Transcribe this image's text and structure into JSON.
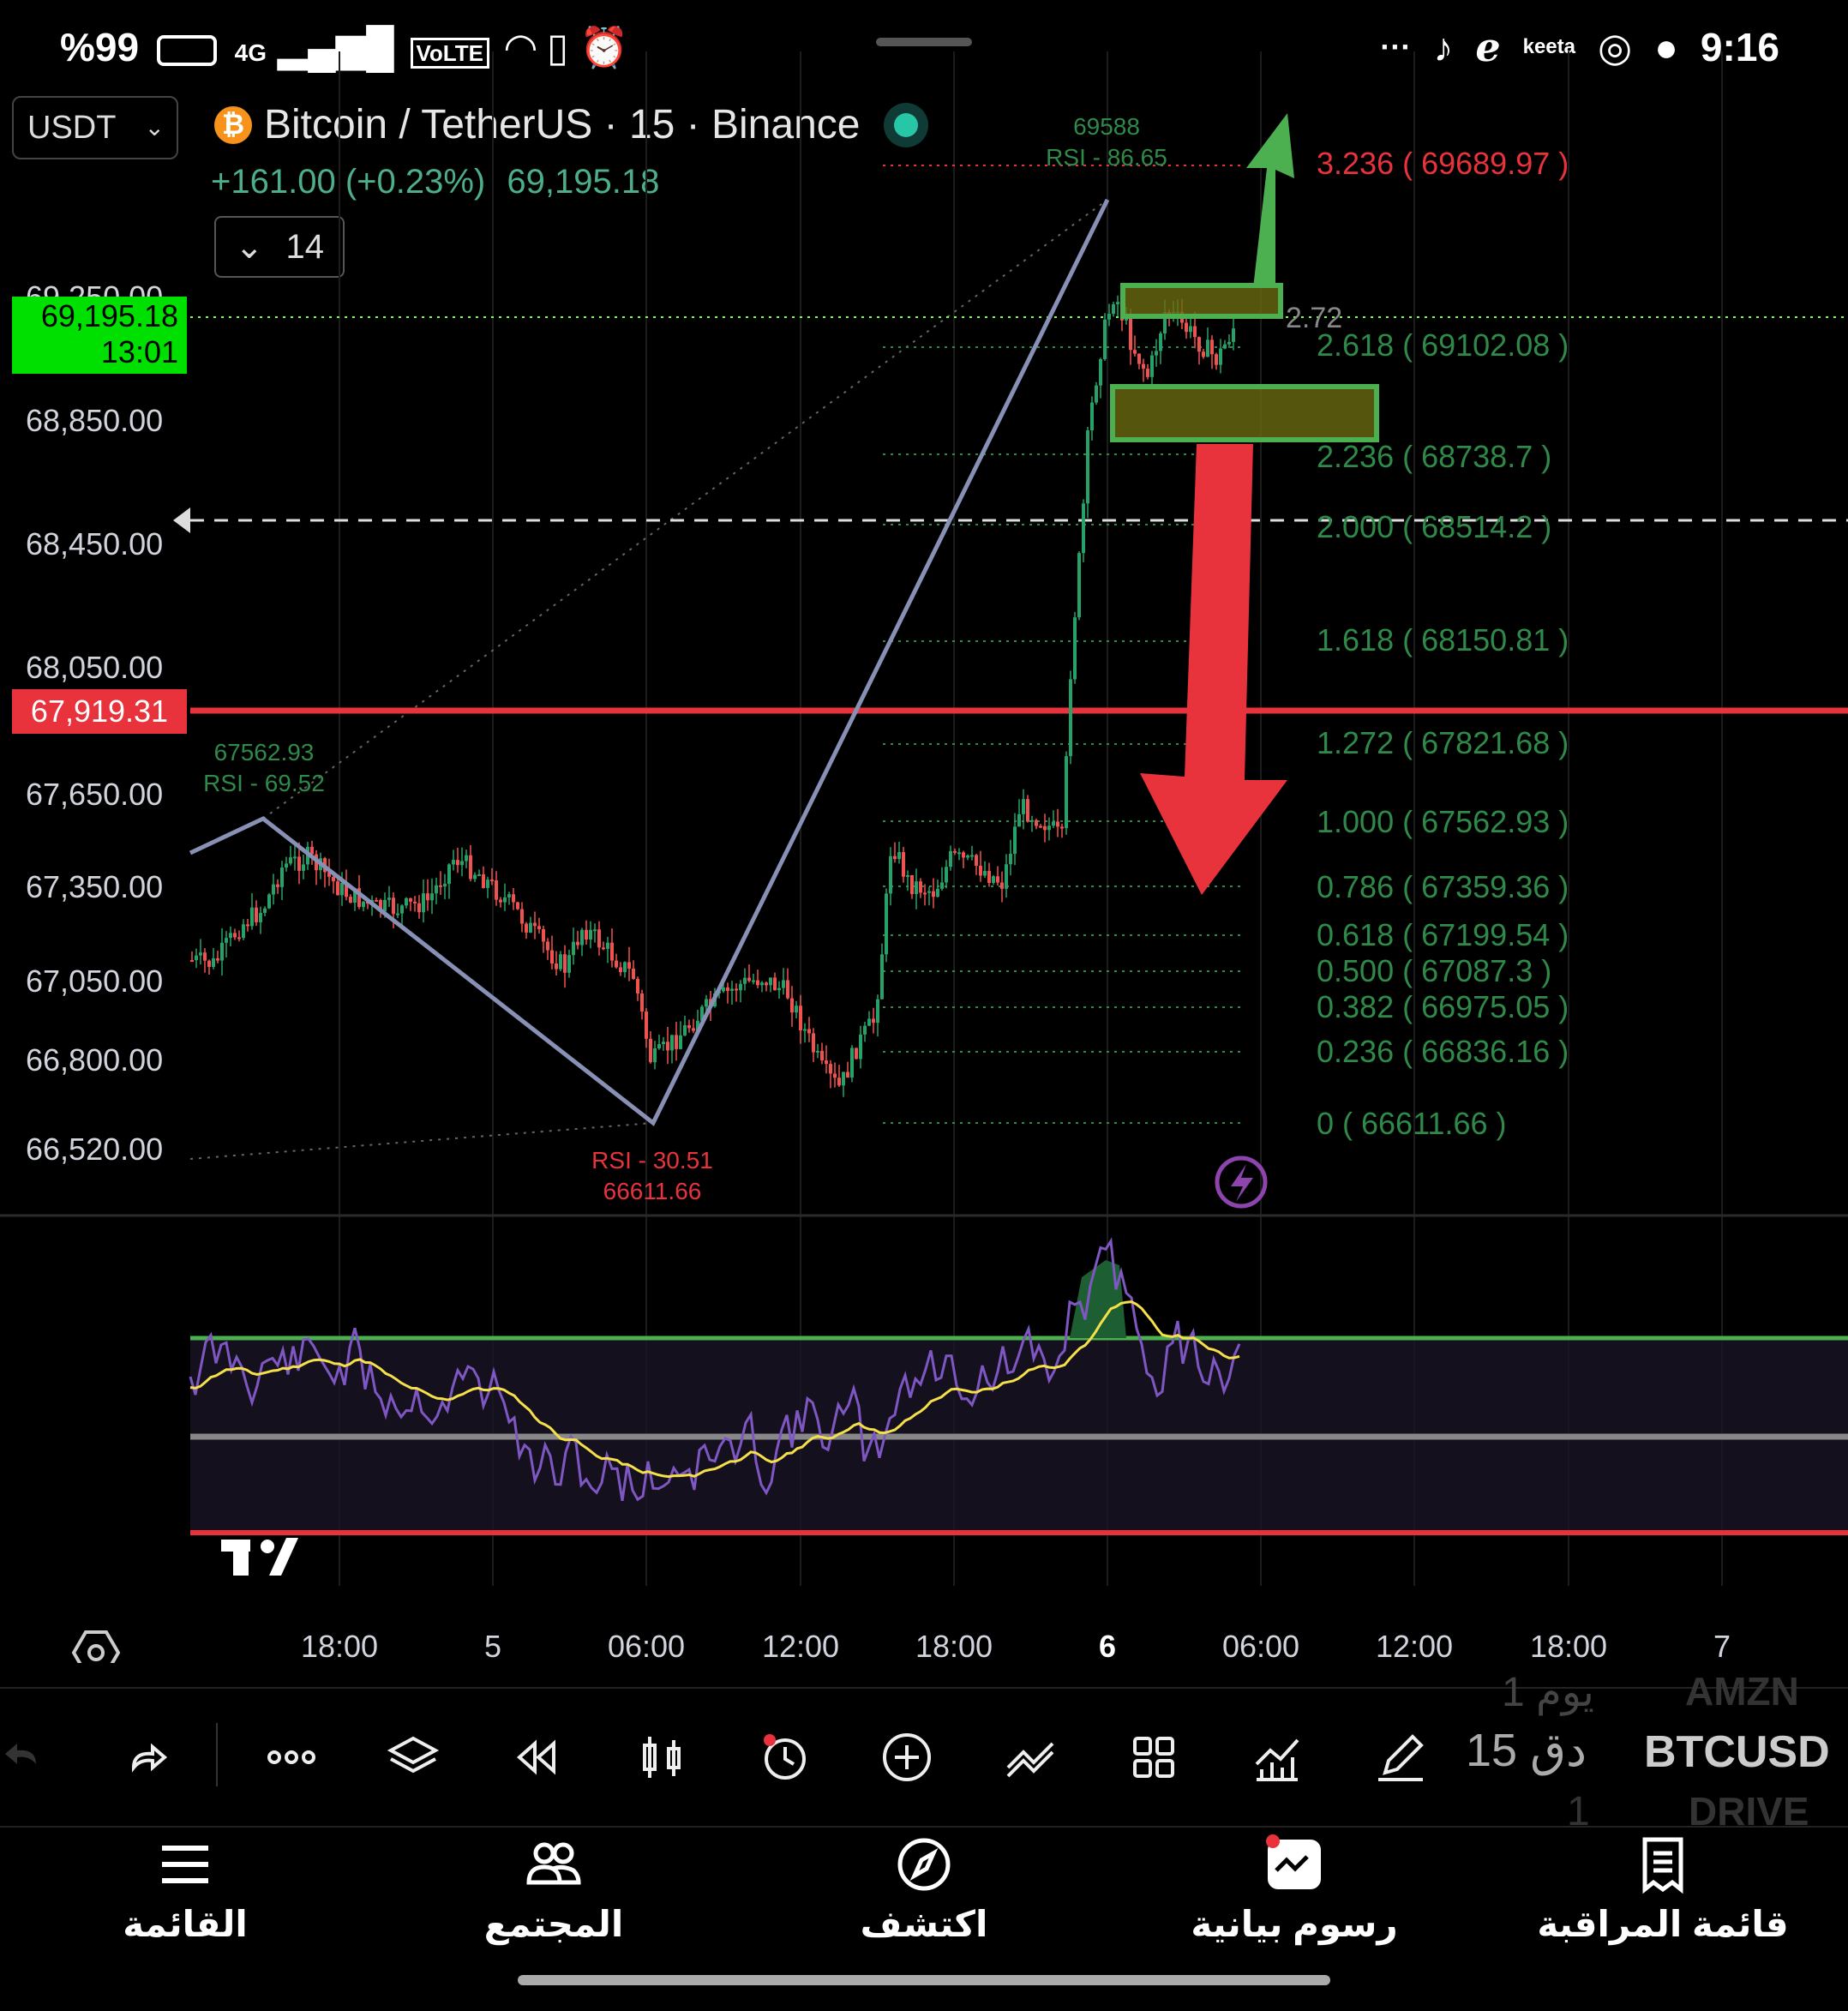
{
  "status_bar": {
    "battery": "%99",
    "network": "4G",
    "volte": "VoLTE",
    "time": "9:16",
    "app_label": "keeta",
    "dots": "···"
  },
  "header": {
    "currency": "USDT",
    "title": "Bitcoin / TetherUS · 15 · Binance",
    "change": "+161.00 (+0.23%)",
    "price": "69,195.18",
    "indicator_toggle": "14"
  },
  "price_axis": {
    "labels": [
      "69,250.00",
      "68,850.00",
      "68,450.00",
      "68,050.00",
      "67,650.00",
      "67,350.00",
      "67,050.00",
      "66,800.00",
      "66,520.00"
    ],
    "current_tag": {
      "price": "69,195.18",
      "countdown": "13:01",
      "color": "#00e000"
    },
    "line_tag": {
      "price": "67,919.31",
      "color": "#e8333c"
    }
  },
  "time_axis": {
    "labels": [
      "18:00",
      "5",
      "06:00",
      "12:00",
      "18:00",
      "6",
      "06:00",
      "12:00",
      "18:00",
      "7"
    ]
  },
  "fib_levels": [
    {
      "label": "3.236 ( 69689.97 )",
      "color": "#e8333c"
    },
    {
      "label": "2.618 ( 69102.08 )",
      "color": "#2f8a4a"
    },
    {
      "label": "2.236 ( 68738.7 )",
      "color": "#2f8a4a"
    },
    {
      "label": "2.000 ( 68514.2 )",
      "color": "#2f8a4a"
    },
    {
      "label": "1.618 ( 68150.81 )",
      "color": "#2f8a4a"
    },
    {
      "label": "1.272 ( 67821.68 )",
      "color": "#2f8a4a"
    },
    {
      "label": "1.000 ( 67562.93 )",
      "color": "#2f8a4a"
    },
    {
      "label": "0.786 ( 67359.36 )",
      "color": "#2f8a4a"
    },
    {
      "label": "0.618 ( 67199.54 )",
      "color": "#2f8a4a"
    },
    {
      "label": "0.500 ( 67087.3 )",
      "color": "#2f8a4a"
    },
    {
      "label": "0.382 ( 66975.05 )",
      "color": "#2f8a4a"
    },
    {
      "label": "0.236 ( 66836.16 )",
      "color": "#2f8a4a"
    },
    {
      "label": "0 ( 66611.66 )",
      "color": "#2f8a4a"
    }
  ],
  "annotations": {
    "high": {
      "price": "69588",
      "rsi": "RSI - 86.65"
    },
    "mid": {
      "price": "67562.93",
      "rsi": "RSI - 69.52"
    },
    "low": {
      "rsi": "RSI - 30.51",
      "price": "66611.66"
    },
    "ext_label": "2.72"
  },
  "toolbar": {
    "timeframe": "15 دق",
    "timeframe_ghost_above": "1 يوم",
    "timeframe_ghost_below": "1",
    "symbol": "BTCUSD",
    "symbol_ghost_above": "AMZN",
    "symbol_ghost_below": "DRIVE",
    "icons": [
      "undo-icon",
      "redo-icon",
      "more-icon",
      "layers-icon",
      "replay-icon",
      "candles-icon",
      "alert-icon",
      "add-icon",
      "compare-icon",
      "layout-icon",
      "indicators-icon",
      "draw-icon"
    ]
  },
  "bottom_nav": [
    {
      "label": "القائمة",
      "icon": "menu-icon"
    },
    {
      "label": "المجتمع",
      "icon": "community-icon"
    },
    {
      "label": "اكتشف",
      "icon": "explore-icon"
    },
    {
      "label": "رسوم بيانية",
      "icon": "charts-icon"
    },
    {
      "label": "قائمة المراقبة",
      "icon": "watchlist-icon"
    }
  ],
  "colors": {
    "up": "#26a269",
    "down": "#ef5350",
    "fib_line": "#2f8a4a",
    "rsi_line": "#7e57c2",
    "rsi_ma": "#f5e04a",
    "support_line": "#e8333c",
    "arrow_up": "#4caf50",
    "arrow_down": "#e8333c"
  }
}
